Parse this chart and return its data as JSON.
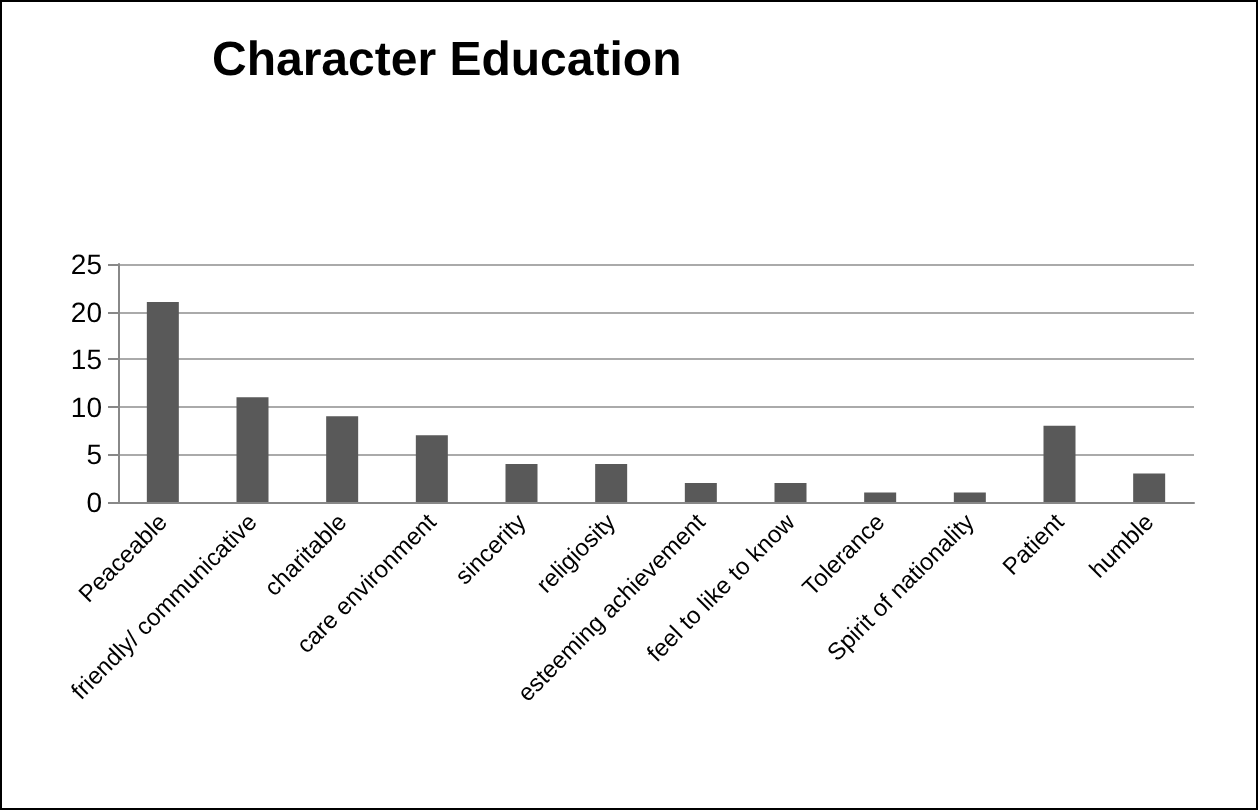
{
  "chart_data": {
    "type": "bar",
    "title": "Character Education",
    "categories": [
      "Peaceable",
      "friendly/ communicative",
      "charitable",
      "care environment",
      "sincerity",
      "religiosity",
      "esteeming achievement",
      "feel to like to know",
      "Tolerance",
      "Spirit of nationality",
      "Patient",
      "humble"
    ],
    "values": [
      21,
      11,
      9,
      7,
      4,
      4,
      2,
      2,
      1,
      1,
      8,
      3
    ],
    "color": "#595959",
    "ylim": [
      0,
      25
    ],
    "yticks": [
      0,
      5,
      10,
      15,
      20,
      25
    ],
    "grid": "y"
  }
}
